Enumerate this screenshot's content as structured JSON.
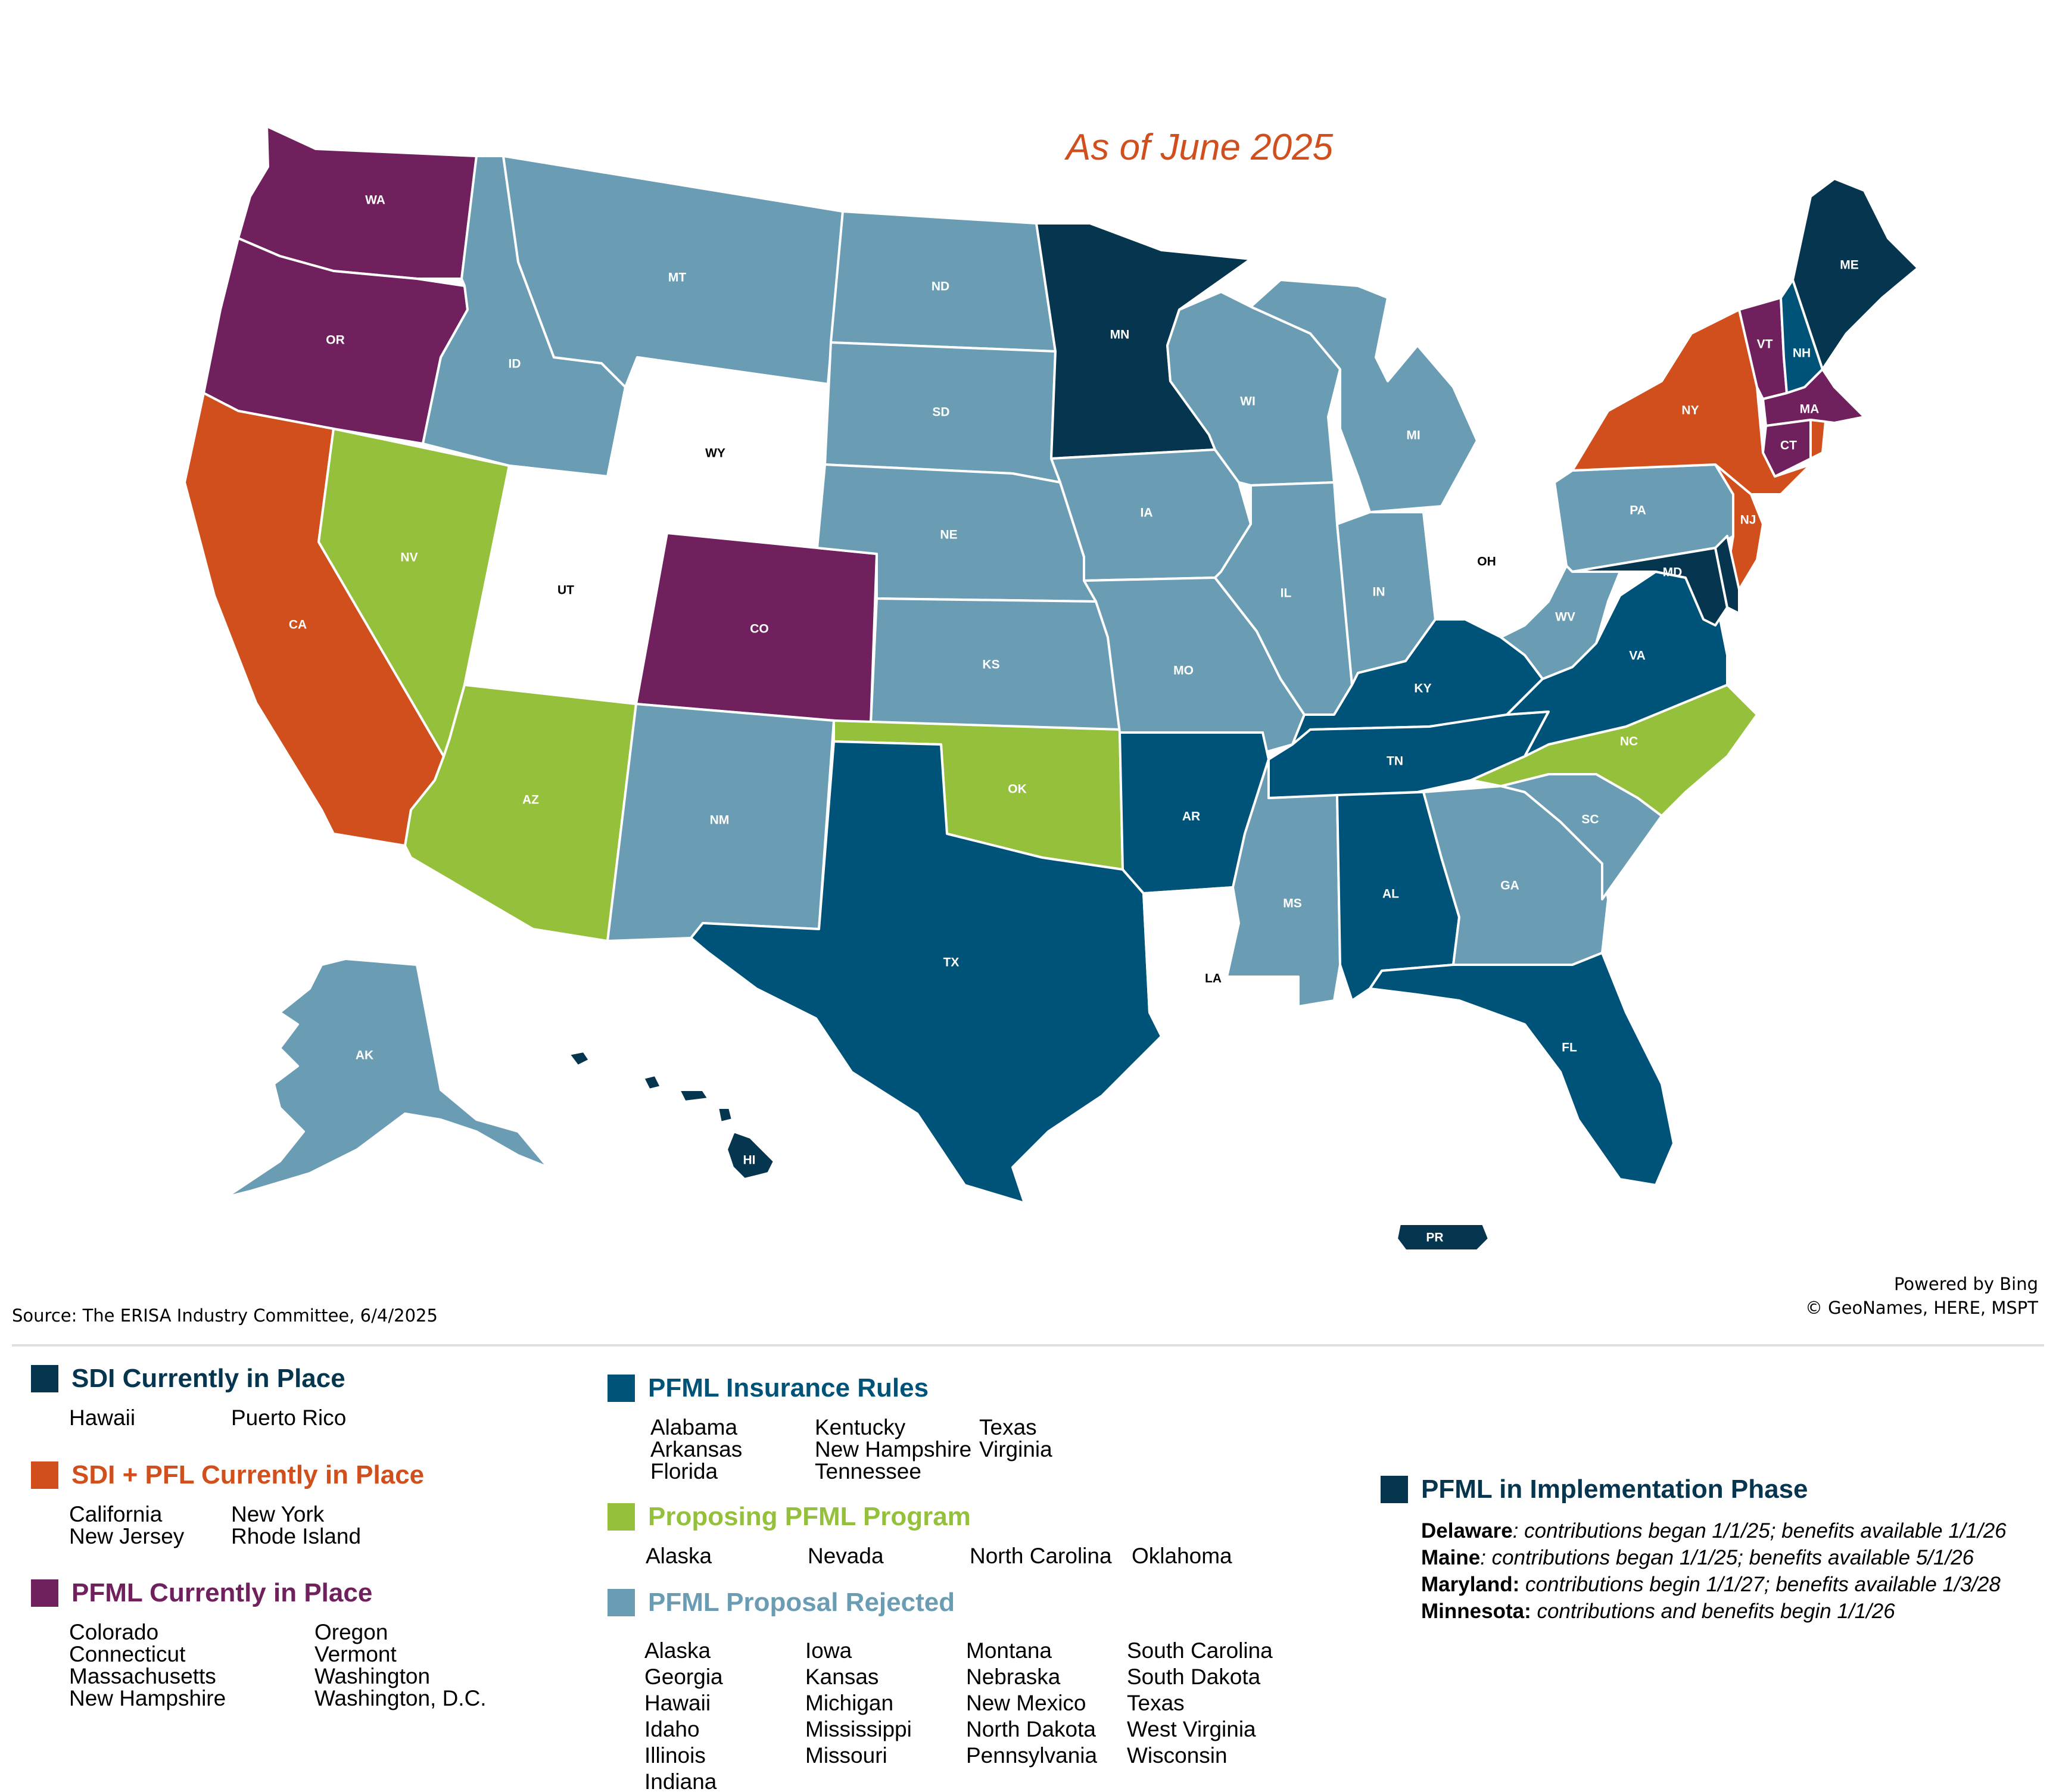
{
  "map": {
    "annotation": "As of June 2025",
    "source": "Source: The ERISA Industry Committee, 6/4/2025",
    "attribution": [
      "Powered by Bing",
      "© GeoNames, HERE, MSPT"
    ],
    "colors": {
      "sdi": "#06354f",
      "sdi_pfl": "#d14f1c",
      "pfml_in_place": "#71205e",
      "insurance_rules": "#005378",
      "proposing": "#95c03b",
      "rejected": "#6a9db3",
      "implementation": "#06354f",
      "none": "#ffffff"
    },
    "states": {
      "WA": "pfml_in_place",
      "OR": "pfml_in_place",
      "CA": "sdi_pfl",
      "NV": "proposing",
      "ID": "rejected",
      "MT": "rejected",
      "WY": "none",
      "UT": "none",
      "AZ": "proposing",
      "CO": "pfml_in_place",
      "NM": "rejected",
      "ND": "rejected",
      "SD": "rejected",
      "NE": "rejected",
      "KS": "rejected",
      "OK": "proposing",
      "TX": "insurance_rules",
      "MN": "implementation",
      "IA": "rejected",
      "MO": "rejected",
      "AR": "insurance_rules",
      "LA": "none",
      "WI": "rejected",
      "IL": "rejected",
      "MI": "rejected",
      "IN": "rejected",
      "OH": "none",
      "KY": "insurance_rules",
      "TN": "insurance_rules",
      "MS": "rejected",
      "AL": "insurance_rules",
      "GA": "rejected",
      "FL": "insurance_rules",
      "SC": "rejected",
      "NC": "proposing",
      "VA": "insurance_rules",
      "WV": "rejected",
      "PA": "rejected",
      "NY": "sdi_pfl",
      "NJ": "sdi_pfl",
      "MD": "implementation",
      "DE": "implementation",
      "VT": "pfml_in_place",
      "NH": "insurance_rules",
      "ME": "implementation",
      "MA": "pfml_in_place",
      "CT": "pfml_in_place",
      "RI": "sdi_pfl",
      "AK": "rejected",
      "HI": "sdi",
      "PR": "sdi"
    }
  },
  "legend": {
    "sdi": {
      "title": "SDI Currently in Place",
      "columns": [
        [
          "Hawaii"
        ],
        [
          "Puerto Rico"
        ]
      ]
    },
    "sdi_pfl": {
      "title": "SDI + PFL Currently in Place",
      "columns": [
        [
          "California",
          "New Jersey"
        ],
        [
          "New York",
          "Rhode Island"
        ]
      ]
    },
    "pfml_in_place": {
      "title": "PFML Currently in Place",
      "columns": [
        [
          "Colorado",
          "Connecticut",
          "Massachusetts",
          "New Hampshire"
        ],
        [
          "Oregon",
          "Vermont",
          "Washington",
          "Washington, D.C."
        ]
      ]
    },
    "insurance_rules": {
      "title": "PFML Insurance Rules",
      "columns": [
        [
          "Alabama",
          "Arkansas",
          "Florida"
        ],
        [
          "Kentucky",
          "New Hampshire",
          "Tennessee"
        ],
        [
          "Texas",
          "Virginia"
        ]
      ]
    },
    "proposing": {
      "title": "Proposing PFML Program",
      "columns": [
        [
          "Alaska"
        ],
        [
          "Nevada"
        ],
        [
          "North Carolina"
        ],
        [
          "Oklahoma"
        ]
      ]
    },
    "rejected": {
      "title": "PFML Proposal Rejected",
      "columns": [
        [
          "Alaska",
          "Georgia",
          "Hawaii",
          "Idaho",
          "Illinois",
          "Indiana"
        ],
        [
          "Iowa",
          "Kansas",
          "Michigan",
          "Mississippi",
          "Missouri"
        ],
        [
          "Montana",
          "Nebraska",
          "New Mexico",
          "North Dakota",
          "Pennsylvania"
        ],
        [
          "South Carolina",
          "South Dakota",
          "Texas",
          "West Virginia",
          "Wisconsin"
        ]
      ]
    },
    "implementation": {
      "title": "PFML in Implementation Phase",
      "rows": [
        {
          "state": "Delaware",
          "detail": ": contributions began 1/1/25; benefits available 1/1/26"
        },
        {
          "state": "Maine",
          "detail": ": contributions began 1/1/25; benefits available 5/1/26"
        },
        {
          "state": "Maryland:",
          "detail": " contributions begin 1/1/27; benefits available 1/3/28"
        },
        {
          "state": "Minnesota:",
          "detail": " contributions and benefits begin 1/1/26"
        }
      ]
    }
  }
}
